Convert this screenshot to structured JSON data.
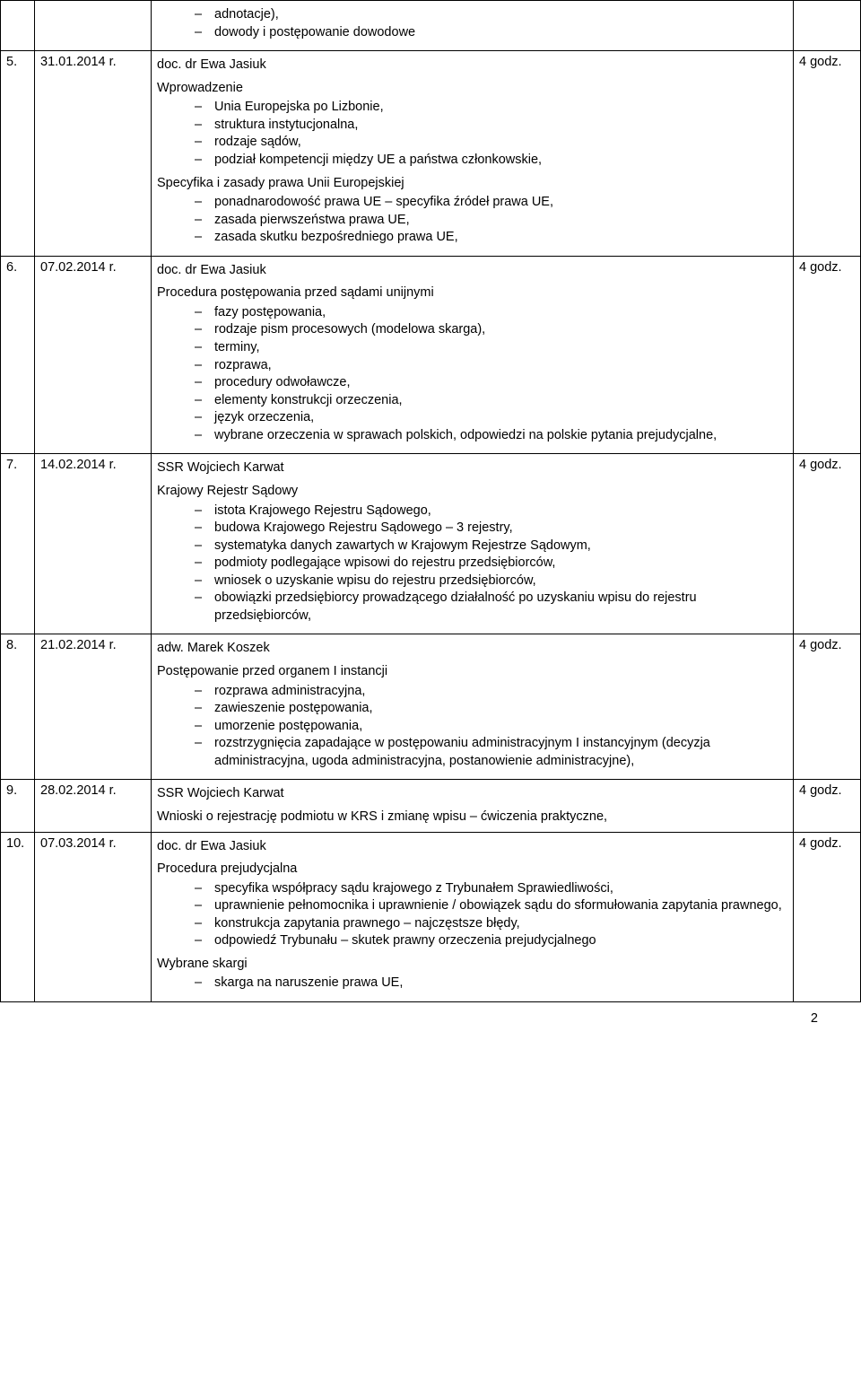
{
  "page_number": "2",
  "duration_label": "4 godz.",
  "rows": [
    {
      "num": "",
      "date": "",
      "lecturer": "",
      "duration": "",
      "pre_items": [
        "adnotacje),",
        "dowody i postępowanie dowodowe"
      ]
    },
    {
      "num": "5.",
      "date": "31.01.2014 r.",
      "lecturer": "doc. dr Ewa Jasiuk",
      "duration": "4 godz.",
      "sections": [
        {
          "title": "Wprowadzenie",
          "items": [
            "Unia Europejska po Lizbonie,",
            "struktura instytucjonalna,",
            "rodzaje sądów,",
            "podział kompetencji między UE a państwa członkowskie,"
          ]
        },
        {
          "title": "Specyfika i zasady prawa Unii Europejskiej",
          "items": [
            "ponadnarodowość prawa UE – specyfika źródeł prawa UE,",
            "zasada pierwszeństwa prawa UE,",
            "zasada skutku bezpośredniego prawa UE,"
          ]
        }
      ]
    },
    {
      "num": "6.",
      "date": "07.02.2014 r.",
      "lecturer": "doc. dr Ewa Jasiuk",
      "duration": "4 godz.",
      "sections": [
        {
          "title": "Procedura postępowania przed sądami unijnymi",
          "items": [
            "fazy postępowania,",
            "rodzaje pism procesowych (modelowa skarga),",
            "terminy,",
            "rozprawa,",
            "procedury odwoławcze,",
            "elementy konstrukcji orzeczenia,",
            "język orzeczenia,",
            "wybrane orzeczenia w sprawach polskich, odpowiedzi na polskie pytania prejudycjalne,"
          ]
        }
      ]
    },
    {
      "num": "7.",
      "date": "14.02.2014 r.",
      "lecturer": "SSR Wojciech Karwat",
      "duration": "4 godz.",
      "sections": [
        {
          "title": "Krajowy Rejestr Sądowy",
          "items": [
            "istota Krajowego Rejestru Sądowego,",
            "budowa Krajowego Rejestru Sądowego – 3 rejestry,",
            "systematyka danych zawartych w Krajowym Rejestrze Sądowym,",
            "podmioty podlegające wpisowi do rejestru przedsiębiorców,",
            "wniosek o uzyskanie wpisu do rejestru przedsiębiorców,",
            "obowiązki przedsiębiorcy prowadzącego działalność po uzyskaniu wpisu do rejestru przedsiębiorców,"
          ]
        }
      ]
    },
    {
      "num": "8.",
      "date": "21.02.2014 r.",
      "lecturer": "adw. Marek Koszek",
      "duration": "4 godz.",
      "sections": [
        {
          "title": "Postępowanie przed organem I instancji",
          "items": [
            "rozprawa administracyjna,",
            "zawieszenie postępowania,",
            "umorzenie postępowania,",
            "rozstrzygnięcia zapadające w postępowaniu administracyjnym I instancyjnym (decyzja administracyjna, ugoda administracyjna, postanowienie administracyjne),"
          ]
        }
      ]
    },
    {
      "num": "9.",
      "date": "28.02.2014 r.",
      "lecturer": "SSR Wojciech Karwat",
      "duration": "4 godz.",
      "paragraphs": [
        "Wnioski o rejestrację podmiotu w KRS i zmianę wpisu – ćwiczenia praktyczne,"
      ]
    },
    {
      "num": "10.",
      "date": "07.03.2014 r.",
      "lecturer": "doc. dr Ewa Jasiuk",
      "duration": "4 godz.",
      "sections": [
        {
          "title": "Procedura prejudycjalna",
          "items": [
            "specyfika współpracy sądu krajowego z Trybunałem Sprawiedliwości,",
            "uprawnienie pełnomocnika i uprawnienie / obowiązek sądu do sformułowania zapytania prawnego,",
            "konstrukcja zapytania prawnego – najczęstsze błędy,",
            "odpowiedź Trybunału – skutek prawny orzeczenia prejudycjalnego"
          ]
        },
        {
          "title": "Wybrane skargi",
          "items": [
            "skarga na naruszenie prawa UE,"
          ]
        }
      ]
    }
  ]
}
